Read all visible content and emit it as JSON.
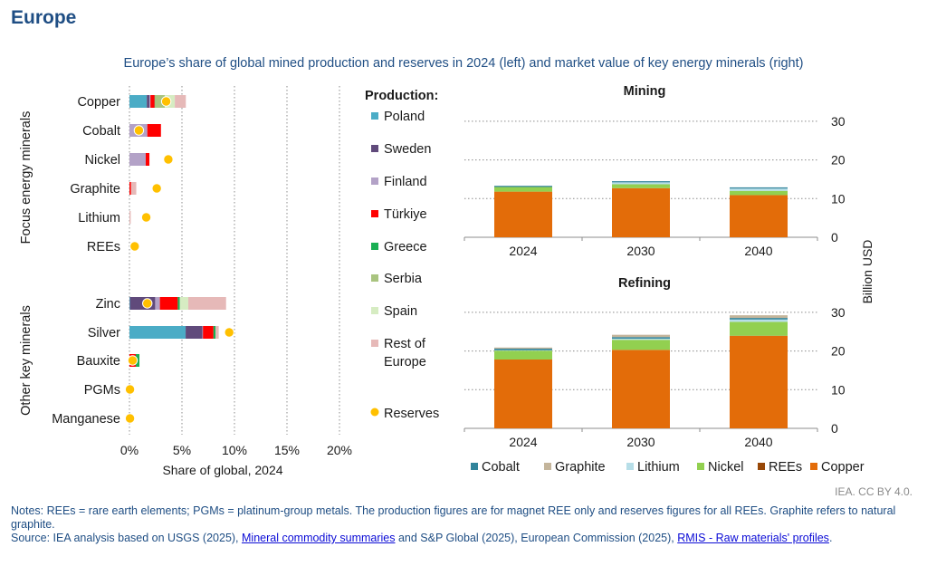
{
  "header": {
    "region_title": "Europe",
    "subtitle": "Europe’s share of global mined production and reserves in 2024 (left) and market value of key energy minerals (right)"
  },
  "footer": {
    "credit": "IEA. CC BY 4.0.",
    "notes": "Notes: REEs = rare earth elements; PGMs = platinum-group metals. The production figures are for magnet REE only and reserves figures for all REEs. Graphite refers to natural graphite.",
    "source_prefix": "Source: IEA analysis based on USGS (2025), ",
    "source_link1": "Mineral commodity summaries",
    "source_middle": " and S&P Global (2025), European Commission (2025), ",
    "source_link2": "RMIS - Raw materials' profiles",
    "source_suffix": "."
  },
  "chart_data": [
    {
      "type": "bar",
      "orientation": "horizontal",
      "stacked": true,
      "title": "Europe's share of global mined production and reserves in 2024",
      "xlabel": "Share of global, 2024",
      "xlim": [
        0,
        20
      ],
      "xticks": [
        "0%",
        "5%",
        "10%",
        "15%",
        "20%"
      ],
      "xtick_values": [
        0,
        5,
        10,
        15,
        20
      ],
      "grid": "vertical-dotted",
      "groups": [
        {
          "label": "Focus energy minerals",
          "categories": [
            "Copper",
            "Cobalt",
            "Nickel",
            "Graphite",
            "Lithium",
            "REEs"
          ]
        },
        {
          "label": "Other key minerals",
          "categories": [
            "Zinc",
            "Silver",
            "Bauxite",
            "PGMs",
            "Manganese"
          ]
        }
      ],
      "categories": [
        "Copper",
        "Cobalt",
        "Nickel",
        "Graphite",
        "Lithium",
        "REEs",
        "Zinc",
        "Silver",
        "Bauxite",
        "PGMs",
        "Manganese"
      ],
      "legend_title": "Production:",
      "legend_position": "right",
      "series": [
        {
          "name": "Poland",
          "color": "#4bacc6",
          "values": [
            1.65,
            0,
            0,
            0,
            0,
            0,
            0.05,
            5.35,
            0,
            0,
            0
          ]
        },
        {
          "name": "Sweden",
          "color": "#604a7b",
          "values": [
            0.25,
            0,
            0,
            0,
            0,
            0,
            2.4,
            1.6,
            0,
            0,
            0
          ]
        },
        {
          "name": "Finland",
          "color": "#b3a2c7",
          "values": [
            0.1,
            1.7,
            1.55,
            0,
            0,
            0,
            0.45,
            0.05,
            0,
            0,
            0
          ]
        },
        {
          "name": "Türkiye",
          "color": "#ff0000",
          "values": [
            0.4,
            1.3,
            0.35,
            0.15,
            0,
            0,
            1.7,
            1.0,
            0.6,
            0,
            0
          ]
        },
        {
          "name": "Greece",
          "color": "#1aaf54",
          "values": [
            0.02,
            0,
            0,
            0,
            0,
            0,
            0.2,
            0.2,
            0.35,
            0,
            0
          ]
        },
        {
          "name": "Serbia",
          "color": "#a9c47f",
          "values": [
            0.95,
            0,
            0,
            0,
            0,
            0,
            0,
            0,
            0,
            0,
            0
          ]
        },
        {
          "name": "Spain",
          "color": "#d6ecc2",
          "values": [
            0.95,
            0,
            0,
            0,
            0,
            0,
            0.8,
            0,
            0,
            0,
            0
          ]
        },
        {
          "name": "Rest of Europe",
          "color": "#e6b9b8",
          "values": [
            1.05,
            0,
            0,
            0.5,
            0.12,
            0,
            3.6,
            0.3,
            0,
            0,
            0
          ]
        }
      ],
      "reserves": {
        "name": "Reserves",
        "color": "#ffc000",
        "values": [
          3.5,
          0.9,
          3.7,
          2.6,
          1.6,
          0.5,
          1.7,
          9.5,
          0.3,
          0.05,
          0.05
        ]
      }
    },
    {
      "type": "bar",
      "stacked": true,
      "title": "Mining",
      "categories": [
        "2024",
        "2030",
        "2040"
      ],
      "ylabel": "Billion USD",
      "ylim": [
        0,
        30
      ],
      "yticks": [
        0,
        10,
        20,
        30
      ],
      "grid": "horizontal-dotted",
      "series": [
        {
          "name": "Copper",
          "color": "#e36c09",
          "values": [
            11.8,
            12.7,
            10.9
          ]
        },
        {
          "name": "REEs",
          "color": "#984807",
          "values": [
            0,
            0,
            0
          ]
        },
        {
          "name": "Nickel",
          "color": "#92d050",
          "values": [
            1.2,
            1.0,
            1.1
          ]
        },
        {
          "name": "Lithium",
          "color": "#b7dee8",
          "values": [
            0,
            0.5,
            0.6
          ]
        },
        {
          "name": "Graphite",
          "color": "#c4b59b",
          "values": [
            0,
            0,
            0
          ]
        },
        {
          "name": "Cobalt",
          "color": "#31849b",
          "values": [
            0.3,
            0.3,
            0.3
          ]
        }
      ]
    },
    {
      "type": "bar",
      "stacked": true,
      "title": "Refining",
      "categories": [
        "2024",
        "2030",
        "2040"
      ],
      "ylabel": "Billion USD",
      "ylim": [
        0,
        30
      ],
      "yticks": [
        0,
        10,
        20,
        30
      ],
      "grid": "horizontal-dotted",
      "legend_position": "bottom",
      "legend_order": [
        "Cobalt",
        "Graphite",
        "Lithium",
        "Nickel",
        "REEs",
        "Copper"
      ],
      "series": [
        {
          "name": "Copper",
          "color": "#e36c09",
          "values": [
            17.8,
            20.3,
            23.9
          ]
        },
        {
          "name": "REEs",
          "color": "#984807",
          "values": [
            0,
            0,
            0.05
          ]
        },
        {
          "name": "Nickel",
          "color": "#92d050",
          "values": [
            2.3,
            2.6,
            3.6
          ]
        },
        {
          "name": "Lithium",
          "color": "#b7dee8",
          "values": [
            0.1,
            0.3,
            0.6
          ]
        },
        {
          "name": "Cobalt",
          "color": "#31849b",
          "values": [
            0.4,
            0.4,
            0.4
          ]
        },
        {
          "name": "Graphite",
          "color": "#c4b59b",
          "values": [
            0.3,
            0.6,
            0.7
          ]
        }
      ]
    }
  ]
}
